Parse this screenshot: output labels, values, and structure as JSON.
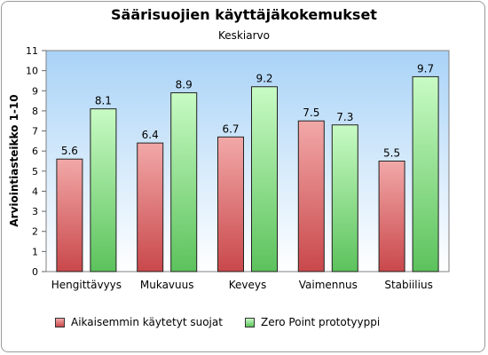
{
  "chart_data": {
    "type": "bar",
    "title": "Säärisuojien käyttäjäkokemukset",
    "subtitle": "Keskiarvo",
    "ylabel": "Arviointiasteikko 1-10",
    "xlabel": "",
    "ylim": [
      0,
      11
    ],
    "yticks": [
      "0",
      "1",
      "2",
      "3",
      "4",
      "5",
      "6",
      "7",
      "8",
      "9",
      "10",
      "11"
    ],
    "grid": false,
    "legend_position": "bottom",
    "categories": [
      "Hengittävyys",
      "Mukavuus",
      "Keveys",
      "Vaimennus",
      "Stabiilius"
    ],
    "series": [
      {
        "name": "Aikaisemmin käytetyt suojat",
        "values": [
          5.6,
          6.4,
          6.7,
          7.5,
          5.5
        ],
        "labels": [
          "5.6",
          "6.4",
          "6.7",
          "7.5",
          "5.5"
        ],
        "color_top": "#f2a8a8",
        "color_bottom": "#c9484b"
      },
      {
        "name": "Zero Point prototyyppi",
        "values": [
          8.1,
          8.9,
          9.2,
          7.3,
          9.7
        ],
        "labels": [
          "8.1",
          "8.9",
          "9.2",
          "7.3",
          "9.7"
        ],
        "color_top": "#c8fbc4",
        "color_bottom": "#5cc25c"
      }
    ]
  }
}
